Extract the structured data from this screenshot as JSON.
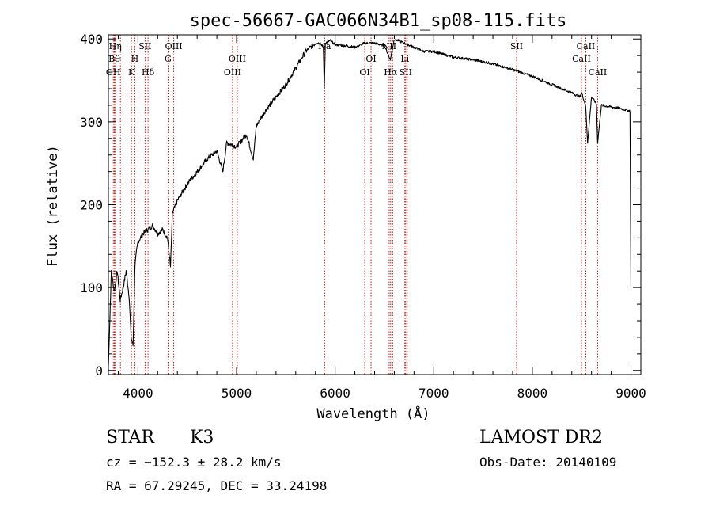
{
  "chart_data": {
    "type": "line",
    "title": "spec-56667-GAC066N34B1_sp08-115.fits",
    "xlabel": "Wavelength (Å)",
    "ylabel": "Flux (relative)",
    "xlim": [
      3700,
      9100
    ],
    "ylim": [
      -5,
      405
    ],
    "xticks": [
      4000,
      5000,
      6000,
      7000,
      8000,
      9000
    ],
    "yticks": [
      0,
      100,
      200,
      300,
      400
    ],
    "grid": false,
    "series": [
      {
        "x": [
          3700,
          3730,
          3760,
          3790,
          3820,
          3850,
          3880,
          3910,
          3930,
          3950,
          3970,
          4000,
          4050,
          4100,
          4150,
          4200,
          4250,
          4300,
          4330,
          4350,
          4400,
          4500,
          4600,
          4700,
          4800,
          4860,
          4900,
          5000,
          5100,
          5170,
          5200,
          5300,
          5400,
          5500,
          5600,
          5700,
          5800,
          5850,
          5880,
          5890,
          5900,
          5950,
          6000,
          6100,
          6200,
          6300,
          6400,
          6500,
          6560,
          6600,
          6700,
          6800,
          6900,
          7000,
          7200,
          7400,
          7600,
          7800,
          8000,
          8200,
          8400,
          8480,
          8500,
          8540,
          8560,
          8600,
          8650,
          8662,
          8700,
          8800,
          8900,
          8990,
          9000
        ],
        "y": [
          5,
          120,
          95,
          120,
          85,
          100,
          120,
          90,
          40,
          30,
          130,
          155,
          165,
          170,
          175,
          165,
          170,
          160,
          125,
          190,
          205,
          225,
          240,
          255,
          265,
          240,
          275,
          270,
          285,
          255,
          295,
          315,
          330,
          345,
          365,
          385,
          395,
          395,
          390,
          340,
          395,
          398,
          393,
          392,
          390,
          395,
          395,
          392,
          375,
          400,
          395,
          390,
          385,
          385,
          378,
          375,
          370,
          363,
          355,
          345,
          335,
          330,
          335,
          320,
          275,
          330,
          322,
          275,
          320,
          318,
          316,
          313,
          100
        ]
      }
    ],
    "line_color": "#000000",
    "marker_color": "#cc0000",
    "lines": [
      {
        "w": 3750,
        "label": "OH",
        "row": 3
      },
      {
        "w": 3760,
        "label": "Bθ",
        "row": 2
      },
      {
        "w": 3770,
        "label": "Hη",
        "row": 1
      },
      {
        "w": 3822,
        "label": "",
        "row": 0
      },
      {
        "w": 3934,
        "label": "K",
        "row": 3
      },
      {
        "w": 3968,
        "label": "H",
        "row": 2
      },
      {
        "w": 4072,
        "label": "SII",
        "row": 1
      },
      {
        "w": 4102,
        "label": "Hδ",
        "row": 3
      },
      {
        "w": 4305,
        "label": "G",
        "row": 2
      },
      {
        "w": 4363,
        "label": "OIII",
        "row": 1
      },
      {
        "w": 4959,
        "label": "OIII",
        "row": 3
      },
      {
        "w": 5007,
        "label": "OIII",
        "row": 2
      },
      {
        "w": 5893,
        "label": "Na",
        "row": 1
      },
      {
        "w": 6300,
        "label": "OI",
        "row": 3
      },
      {
        "w": 6364,
        "label": "OI",
        "row": 2
      },
      {
        "w": 6548,
        "label": "NII",
        "row": 1
      },
      {
        "w": 6563,
        "label": "Hα",
        "row": 3
      },
      {
        "w": 6583,
        "label": "",
        "row": 0
      },
      {
        "w": 6707,
        "label": "Li",
        "row": 2
      },
      {
        "w": 6716,
        "label": "SII",
        "row": 3
      },
      {
        "w": 6731,
        "label": "",
        "row": 0
      },
      {
        "w": 7840,
        "label": "SII",
        "row": 1
      },
      {
        "w": 8498,
        "label": "CaII",
        "row": 2
      },
      {
        "w": 8542,
        "label": "CaII",
        "row": 1
      },
      {
        "w": 8662,
        "label": "CaII",
        "row": 3
      }
    ]
  },
  "info": {
    "object_type": "STAR",
    "subclass": "K3",
    "survey": "LAMOST DR2",
    "cz": "cz = −152.3 ± 28.2 km/s",
    "obs_date": "Obs-Date: 20140109",
    "radec": "RA =  67.29245, DEC =  33.24198"
  }
}
